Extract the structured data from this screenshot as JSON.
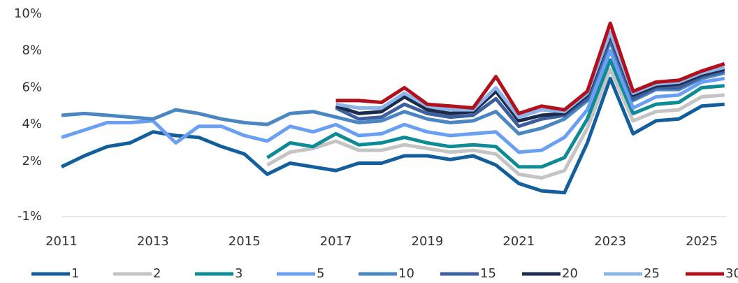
{
  "chart_data": {
    "type": "line",
    "x": [
      2011,
      2011.5,
      2012,
      2012.5,
      2013,
      2013.5,
      2014,
      2014.5,
      2015,
      2015.5,
      2016,
      2016.5,
      2017,
      2017.5,
      2018,
      2018.5,
      2019,
      2019.5,
      2020,
      2020.5,
      2021,
      2021.5,
      2022,
      2022.5,
      2023,
      2023.5,
      2024,
      2024.5,
      2025,
      2025.5
    ],
    "xlim": [
      2011,
      2025.55
    ],
    "xticks": [
      2011,
      2013,
      2015,
      2017,
      2019,
      2021,
      2023,
      2025
    ],
    "ylim": [
      -1,
      10
    ],
    "yticks": [
      {
        "value": -1,
        "label": "-1%"
      },
      {
        "value": 2,
        "label": "2%"
      },
      {
        "value": 4,
        "label": "4%"
      },
      {
        "value": 6,
        "label": "6%"
      },
      {
        "value": 8,
        "label": "8%"
      },
      {
        "value": 10,
        "label": "10%"
      }
    ],
    "series": [
      {
        "name": "1",
        "color": "#135e9c",
        "values": [
          1.7,
          2.3,
          2.8,
          3.0,
          3.6,
          3.4,
          3.3,
          2.8,
          2.4,
          1.3,
          1.9,
          1.7,
          1.5,
          1.9,
          1.9,
          2.3,
          2.3,
          2.1,
          2.3,
          1.8,
          0.8,
          0.4,
          0.3,
          3.0,
          6.5,
          3.5,
          4.2,
          4.3,
          5.0,
          5.1
        ]
      },
      {
        "name": "2",
        "color": "#c4c4c4",
        "values": [
          null,
          null,
          null,
          null,
          null,
          null,
          null,
          null,
          null,
          1.8,
          2.5,
          2.7,
          3.1,
          2.6,
          2.6,
          2.9,
          2.7,
          2.5,
          2.6,
          2.4,
          1.3,
          1.1,
          1.5,
          3.8,
          7.0,
          4.2,
          4.7,
          4.8,
          5.5,
          5.6
        ]
      },
      {
        "name": "3",
        "color": "#0f8b95",
        "values": [
          null,
          null,
          null,
          null,
          null,
          null,
          null,
          null,
          null,
          2.2,
          3.0,
          2.8,
          3.5,
          2.9,
          3.0,
          3.3,
          3.0,
          2.8,
          2.9,
          2.8,
          1.7,
          1.7,
          2.2,
          4.3,
          7.5,
          4.6,
          5.1,
          5.2,
          6.0,
          6.1
        ]
      },
      {
        "name": "5",
        "color": "#6b9ff3",
        "values": [
          3.3,
          3.7,
          4.1,
          4.1,
          4.2,
          3.0,
          3.9,
          3.9,
          3.4,
          3.1,
          3.9,
          3.6,
          4.0,
          3.4,
          3.5,
          4.0,
          3.6,
          3.4,
          3.5,
          3.6,
          2.5,
          2.6,
          3.3,
          4.8,
          8.0,
          4.9,
          5.5,
          5.6,
          6.3,
          6.5
        ]
      },
      {
        "name": "10",
        "color": "#4a87c2",
        "values": [
          4.5,
          4.6,
          4.5,
          4.4,
          4.3,
          4.8,
          4.6,
          4.3,
          4.1,
          4.0,
          4.6,
          4.7,
          4.4,
          4.1,
          4.2,
          4.7,
          4.3,
          4.1,
          4.2,
          4.7,
          3.5,
          3.8,
          4.3,
          5.3,
          8.5,
          5.3,
          5.9,
          5.9,
          6.5,
          6.8
        ]
      },
      {
        "name": "15",
        "color": "#3d5f9e",
        "values": [
          null,
          null,
          null,
          null,
          null,
          null,
          null,
          null,
          null,
          null,
          null,
          null,
          4.9,
          4.3,
          4.4,
          5.1,
          4.6,
          4.4,
          4.5,
          5.4,
          3.9,
          4.3,
          4.5,
          5.4,
          8.7,
          5.4,
          6.0,
          6.0,
          6.6,
          6.9
        ]
      },
      {
        "name": "20",
        "color": "#1b2b4b",
        "values": [
          null,
          null,
          null,
          null,
          null,
          null,
          null,
          null,
          null,
          null,
          null,
          null,
          5.0,
          4.6,
          4.7,
          5.5,
          4.8,
          4.6,
          4.7,
          5.8,
          4.2,
          4.5,
          4.6,
          5.6,
          8.9,
          5.6,
          6.1,
          6.2,
          6.7,
          7.0
        ]
      },
      {
        "name": "25",
        "color": "#8db5ea",
        "values": [
          null,
          null,
          null,
          null,
          null,
          null,
          null,
          null,
          null,
          null,
          null,
          null,
          5.1,
          4.9,
          4.9,
          5.7,
          5.0,
          4.8,
          4.8,
          6.0,
          4.4,
          4.8,
          4.7,
          5.7,
          9.0,
          5.7,
          6.2,
          6.3,
          6.8,
          7.1
        ]
      },
      {
        "name": "30",
        "color": "#b1111d",
        "values": [
          null,
          null,
          null,
          null,
          null,
          null,
          null,
          null,
          null,
          null,
          null,
          null,
          5.3,
          5.3,
          5.2,
          6.0,
          5.1,
          5.0,
          4.9,
          6.6,
          4.6,
          5.0,
          4.8,
          5.8,
          9.5,
          5.8,
          6.3,
          6.4,
          6.9,
          7.3
        ]
      }
    ]
  }
}
